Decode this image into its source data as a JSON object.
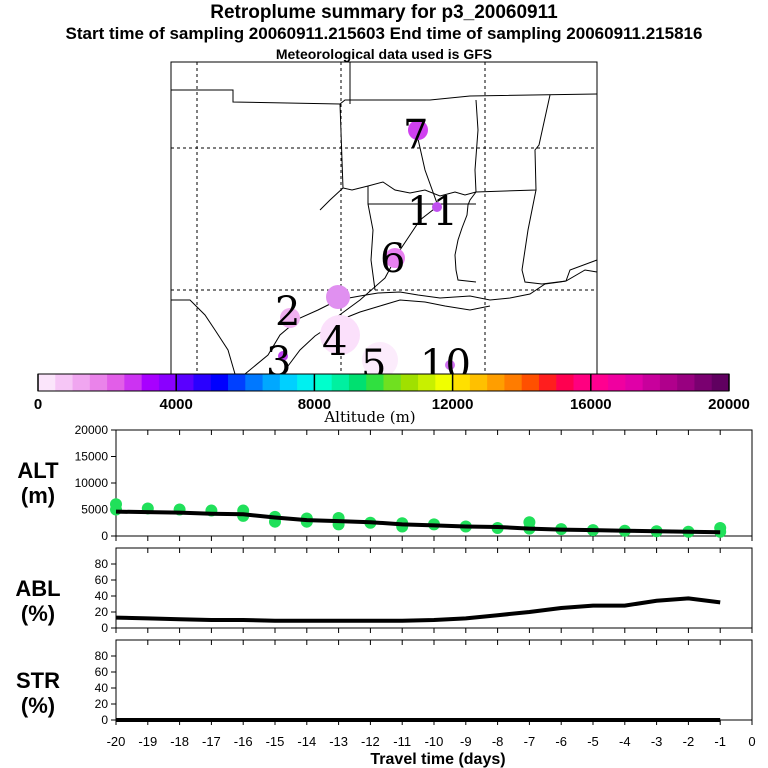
{
  "header": {
    "title": "Retroplume summary for p3_20060911",
    "times": "Start time of sampling 20060911.215603     End time of sampling 20060911.215816",
    "met": "Meteorological data used is GFS"
  },
  "map": {
    "plume_labels": [
      {
        "text": "7",
        "day": 7
      },
      {
        "text": "11",
        "day": 11
      },
      {
        "text": "6",
        "day": 6
      },
      {
        "text": "2",
        "day": 2
      },
      {
        "text": "4",
        "day": 4
      },
      {
        "text": "3",
        "day": 3
      },
      {
        "text": "5",
        "day": 5
      },
      {
        "text": "10",
        "day": 10
      }
    ]
  },
  "colorbar": {
    "label": "Altitude (m)",
    "ticks": [
      "0",
      "4000",
      "8000",
      "12000",
      "16000",
      "20000"
    ],
    "min": 0,
    "max": 20000,
    "colors": [
      "#fbe5fb",
      "#f6c6f6",
      "#f0a6f0",
      "#ea83ea",
      "#e25ee8",
      "#cc33f2",
      "#a800ff",
      "#8a00ff",
      "#5a00ff",
      "#2a00ff",
      "#0000ff",
      "#0040ff",
      "#0078ff",
      "#00a8ff",
      "#00d0ff",
      "#00f0f0",
      "#00ffcc",
      "#00f0a0",
      "#00e070",
      "#30e040",
      "#70e020",
      "#a0e000",
      "#c8f000",
      "#f0ff00",
      "#ffe000",
      "#ffc000",
      "#ff9e00",
      "#ff7c00",
      "#ff5000",
      "#ff1e1e",
      "#ff0050",
      "#ff0080",
      "#ff0090",
      "#f000a0",
      "#e000a8",
      "#c8009c",
      "#b0008c",
      "#980080",
      "#7a0070",
      "#600060"
    ]
  },
  "chart_data": [
    {
      "type": "line",
      "panel": "ALT",
      "ylabel": "ALT\n(m)",
      "ylabel_lines": [
        "ALT",
        "(m)"
      ],
      "ylim": [
        0,
        20000
      ],
      "yticks": [
        "0",
        "5000",
        "10000",
        "15000",
        "20000"
      ],
      "x": [
        -20,
        -19,
        -18,
        -17,
        -16,
        -15,
        -14,
        -13,
        -12,
        -11,
        -10,
        -9,
        -8,
        -7,
        -6,
        -5,
        -4,
        -3,
        -2,
        -1
      ],
      "values": [
        4600,
        4500,
        4400,
        4200,
        4100,
        3500,
        3000,
        2800,
        2600,
        2200,
        2000,
        1800,
        1700,
        1400,
        1200,
        1100,
        1000,
        900,
        800,
        700
      ],
      "scatter": [
        {
          "x": -20,
          "y": 6000
        },
        {
          "x": -20,
          "y": 5000
        },
        {
          "x": -19,
          "y": 5200
        },
        {
          "x": -18,
          "y": 5000
        },
        {
          "x": -17,
          "y": 4800
        },
        {
          "x": -16,
          "y": 4800
        },
        {
          "x": -16,
          "y": 3800
        },
        {
          "x": -15,
          "y": 3600
        },
        {
          "x": -15,
          "y": 2700
        },
        {
          "x": -14,
          "y": 3300
        },
        {
          "x": -14,
          "y": 2700
        },
        {
          "x": -13,
          "y": 3400
        },
        {
          "x": -13,
          "y": 2200
        },
        {
          "x": -12,
          "y": 2500
        },
        {
          "x": -11,
          "y": 2400
        },
        {
          "x": -11,
          "y": 1800
        },
        {
          "x": -10,
          "y": 2200
        },
        {
          "x": -9,
          "y": 1800
        },
        {
          "x": -8,
          "y": 1500
        },
        {
          "x": -7,
          "y": 1400
        },
        {
          "x": -7,
          "y": 2600
        },
        {
          "x": -6,
          "y": 1300
        },
        {
          "x": -5,
          "y": 1100
        },
        {
          "x": -4,
          "y": 1000
        },
        {
          "x": -3,
          "y": 900
        },
        {
          "x": -2,
          "y": 800
        },
        {
          "x": -1,
          "y": 1500
        },
        {
          "x": -1,
          "y": 800
        }
      ]
    },
    {
      "type": "line",
      "panel": "ABL",
      "ylabel": "ABL\n(%)",
      "ylabel_lines": [
        "ABL",
        "(%)"
      ],
      "ylim": [
        0,
        100
      ],
      "yticks": [
        "0",
        "20",
        "40",
        "60",
        "80"
      ],
      "x": [
        -20,
        -19,
        -18,
        -17,
        -16,
        -15,
        -14,
        -13,
        -12,
        -11,
        -10,
        -9,
        -8,
        -7,
        -6,
        -5,
        -4,
        -3,
        -2,
        -1
      ],
      "values": [
        13,
        12,
        11,
        10,
        10,
        9,
        9,
        9,
        9,
        9,
        10,
        12,
        16,
        20,
        25,
        28,
        28,
        34,
        37,
        32
      ]
    },
    {
      "type": "line",
      "panel": "STR",
      "ylabel": "STR\n(%)",
      "ylabel_lines": [
        "STR",
        "(%)"
      ],
      "ylim": [
        0,
        100
      ],
      "yticks": [
        "0",
        "20",
        "40",
        "60",
        "80"
      ],
      "x": [
        -20,
        -19,
        -18,
        -17,
        -16,
        -15,
        -14,
        -13,
        -12,
        -11,
        -10,
        -9,
        -8,
        -7,
        -6,
        -5,
        -4,
        -3,
        -2,
        -1
      ],
      "values": [
        0,
        0,
        0,
        0,
        0,
        0,
        0,
        0,
        0,
        0,
        0,
        0,
        0,
        0,
        0,
        0,
        0,
        0,
        0,
        0
      ]
    }
  ],
  "xaxis": {
    "label": "Travel time (days)",
    "ticks": [
      "-20",
      "-19",
      "-18",
      "-17",
      "-16",
      "-15",
      "-14",
      "-13",
      "-12",
      "-11",
      "-10",
      "-9",
      "-8",
      "-7",
      "-6",
      "-5",
      "-4",
      "-3",
      "-2",
      "-1",
      "0"
    ]
  }
}
